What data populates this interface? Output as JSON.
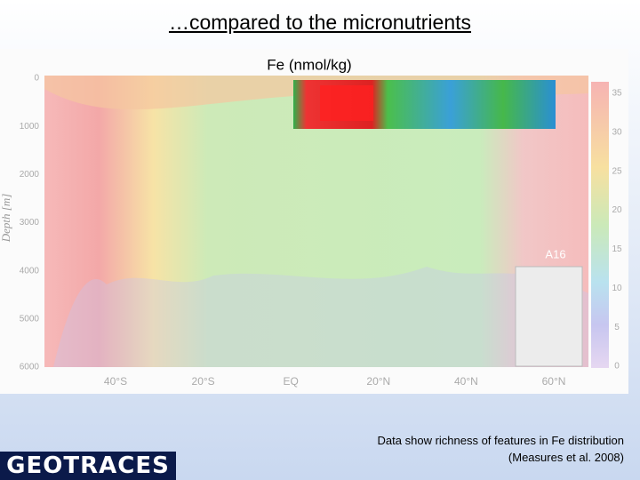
{
  "slide": {
    "title": "…compared to the micronutrients",
    "panel_title": "Fe (nmol/kg)",
    "y_axis_label": "Depth [m]",
    "depth_ticks": [
      "0",
      "1000",
      "2000",
      "3000",
      "4000",
      "5000",
      "6000"
    ],
    "latitude_ticks": [
      "40°S",
      "20°S",
      "EQ",
      "20°N",
      "40°N",
      "60°N"
    ],
    "colorbar_ticks": [
      "35",
      "30",
      "25",
      "20",
      "15",
      "10",
      "5",
      "0"
    ],
    "map_label": "A16",
    "caption": [
      "Data show richness of features in Fe distribution",
      "(Measures et al. 2008)"
    ],
    "logo": "GEOTRACES"
  }
}
